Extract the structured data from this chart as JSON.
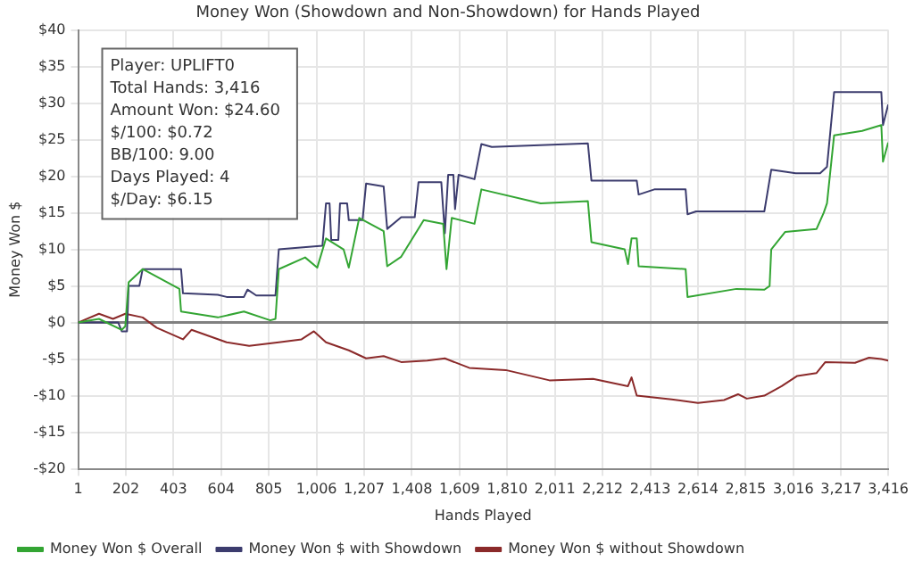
{
  "chart_data": {
    "type": "line",
    "title": "Money Won (Showdown and Non-Showdown) for Hands Played",
    "xlabel": "Hands Played",
    "ylabel": "Money Won $",
    "annotations": [
      "Player: UPLIFT0",
      "Total Hands: 3,416",
      "Amount Won: $24.60",
      "$/100: $0.72",
      "BB/100: 9.00",
      "Days Played: 4",
      "$/Day: $6.15"
    ],
    "xlim": [
      1,
      3416
    ],
    "xticks": [
      1,
      {
        "value": 202,
        "label": "202"
      },
      {
        "value": 403,
        "label": "403"
      },
      {
        "value": 604,
        "label": "604"
      },
      {
        "value": 805,
        "label": "805"
      },
      {
        "value": 1006,
        "label": "1,006"
      },
      {
        "value": 1207,
        "label": "1,207"
      },
      {
        "value": 1408,
        "label": "1,408"
      },
      {
        "value": 1609,
        "label": "1,609"
      },
      {
        "value": 1810,
        "label": "1,810"
      },
      {
        "value": 2011,
        "label": "2,011"
      },
      {
        "value": 2212,
        "label": "2,212"
      },
      {
        "value": 2413,
        "label": "2,413"
      },
      {
        "value": 2614,
        "label": "2,614"
      },
      {
        "value": 2815,
        "label": "2,815"
      },
      {
        "value": 3016,
        "label": "3,016"
      },
      {
        "value": 3217,
        "label": "3,217"
      },
      {
        "value": 3416,
        "label": "3,416"
      }
    ],
    "ylim": [
      -20,
      40
    ],
    "yticks": [
      {
        "value": -20,
        "label": "-$20"
      },
      {
        "value": -15,
        "label": "-$15"
      },
      {
        "value": -10,
        "label": "-$10"
      },
      {
        "value": -5,
        "label": "-$5"
      },
      {
        "value": 0,
        "label": "$0"
      },
      {
        "value": 5,
        "label": "$5"
      },
      {
        "value": 10,
        "label": "$10"
      },
      {
        "value": 15,
        "label": "$15"
      },
      {
        "value": 20,
        "label": "$20"
      },
      {
        "value": 25,
        "label": "$25"
      },
      {
        "value": 30,
        "label": "$30"
      },
      {
        "value": 35,
        "label": "$35"
      },
      {
        "value": 40,
        "label": "$40"
      }
    ],
    "grid": true,
    "legend": "bottom",
    "marker": "none",
    "line_style": "solid",
    "ref_lines": [
      {
        "axis": "y",
        "value": 0,
        "color": "#808080"
      }
    ],
    "series": [
      {
        "name": "Money Won $ Overall",
        "color": "#33a533",
        "x": [
          1,
          89,
          185,
          200,
          214,
          273,
          428,
          435,
          590,
          700,
          811,
          833,
          847,
          958,
          1009,
          1046,
          1120,
          1142,
          1186,
          1289,
          1304,
          1363,
          1458,
          1540,
          1554,
          1576,
          1672,
          1701,
          1951,
          2150,
          2165,
          2305,
          2319,
          2334,
          2356,
          2364,
          2562,
          2570,
          2776,
          2894,
          2916,
          2923,
          2982,
          3114,
          3144,
          3158,
          3188,
          3306,
          3387,
          3394,
          3416
        ],
        "values": [
          0,
          0.5,
          -1,
          -0.5,
          5.5,
          7.3,
          4.6,
          1.5,
          0.7,
          1.5,
          0.3,
          0.5,
          7.3,
          8.9,
          7.5,
          11.5,
          10,
          7.5,
          14.3,
          12.5,
          7.7,
          9,
          14,
          13.5,
          7.3,
          14.3,
          13.5,
          18.2,
          16.3,
          16.6,
          11,
          10,
          8,
          11.5,
          11.5,
          7.7,
          7.3,
          3.5,
          4.6,
          4.5,
          5,
          10,
          12.4,
          12.8,
          15,
          16.3,
          25.6,
          26.2,
          27,
          22,
          24.6
        ]
      },
      {
        "name": "Money Won $ with Showdown",
        "color": "#3c3c6e",
        "x": [
          1,
          170,
          185,
          207,
          214,
          259,
          273,
          435,
          443,
          590,
          627,
          700,
          715,
          752,
          833,
          847,
          1031,
          1046,
          1061,
          1068,
          1098,
          1105,
          1135,
          1142,
          1200,
          1215,
          1289,
          1304,
          1363,
          1420,
          1436,
          1532,
          1547,
          1561,
          1583,
          1590,
          1605,
          1672,
          1701,
          1745,
          2150,
          2165,
          2356,
          2364,
          2430,
          2562,
          2570,
          2606,
          2894,
          2923,
          3026,
          3129,
          3158,
          3188,
          3387,
          3394,
          3416
        ],
        "values": [
          0,
          0,
          -1.2,
          -1.2,
          5,
          5,
          7.3,
          7.3,
          4,
          3.8,
          3.5,
          3.5,
          4.5,
          3.7,
          3.7,
          10,
          10.5,
          16.3,
          16.3,
          11.3,
          11.3,
          16.3,
          16.3,
          14,
          14,
          19,
          18.6,
          12.8,
          14.4,
          14.4,
          19.2,
          19.2,
          12.2,
          20.2,
          20.2,
          15.5,
          20.2,
          19.6,
          24.4,
          24,
          24.5,
          19.4,
          19.4,
          17.5,
          18.2,
          18.2,
          14.8,
          15.2,
          15.2,
          20.9,
          20.4,
          20.4,
          21.3,
          31.5,
          31.5,
          27,
          29.8
        ]
      },
      {
        "name": "Money Won $ without Showdown",
        "color": "#8b2a2a",
        "x": [
          1,
          89,
          148,
          200,
          273,
          332,
          443,
          479,
          627,
          722,
          847,
          943,
          995,
          1046,
          1142,
          1215,
          1289,
          1363,
          1473,
          1547,
          1650,
          1804,
          1988,
          2172,
          2319,
          2334,
          2356,
          2503,
          2614,
          2724,
          2783,
          2820,
          2894,
          2967,
          3033,
          3114,
          3151,
          3276,
          3335,
          3387,
          3416
        ],
        "values": [
          0,
          1.2,
          0.5,
          1.2,
          0.7,
          -0.7,
          -2.3,
          -1,
          -2.7,
          -3.2,
          -2.7,
          -2.3,
          -1.2,
          -2.7,
          -3.8,
          -4.9,
          -4.6,
          -5.4,
          -5.2,
          -4.9,
          -6.2,
          -6.5,
          -7.9,
          -7.7,
          -8.7,
          -7.5,
          -10,
          -10.5,
          -11,
          -10.6,
          -9.8,
          -10.4,
          -10,
          -8.7,
          -7.3,
          -6.9,
          -5.4,
          -5.5,
          -4.8,
          -5,
          -5.2
        ]
      }
    ]
  }
}
